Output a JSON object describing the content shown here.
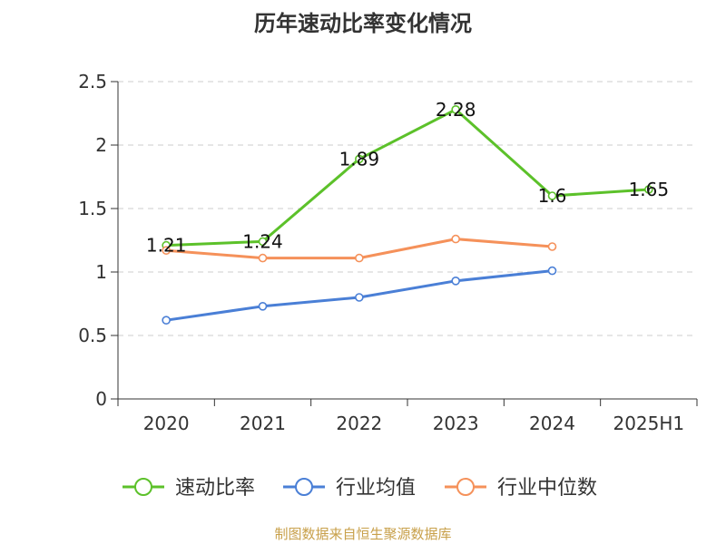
{
  "chart_data": {
    "type": "line",
    "title": "历年速动比率变化情况",
    "categories": [
      "2020",
      "2021",
      "2022",
      "2023",
      "2024",
      "2025H1"
    ],
    "ylim": [
      0,
      2.5
    ],
    "yticks": [
      "0",
      "0.5",
      "1",
      "1.5",
      "2",
      "2.5"
    ],
    "grid": true,
    "legend_position": "bottom",
    "series": [
      {
        "name": "速动比率",
        "color": "#5cc12a",
        "values": [
          1.21,
          1.24,
          1.89,
          2.28,
          1.6,
          1.65
        ],
        "labels": [
          "1.21",
          "1.24",
          "1.89",
          "2.28",
          "1.6",
          "1.65"
        ]
      },
      {
        "name": "行业均值",
        "color": "#4a7fd6",
        "values": [
          0.62,
          0.73,
          0.8,
          0.93,
          1.01,
          null
        ]
      },
      {
        "name": "行业中位数",
        "color": "#f5915a",
        "values": [
          1.17,
          1.11,
          1.11,
          1.26,
          1.2,
          null
        ]
      }
    ]
  },
  "source": "制图数据来自恒生聚源数据库"
}
